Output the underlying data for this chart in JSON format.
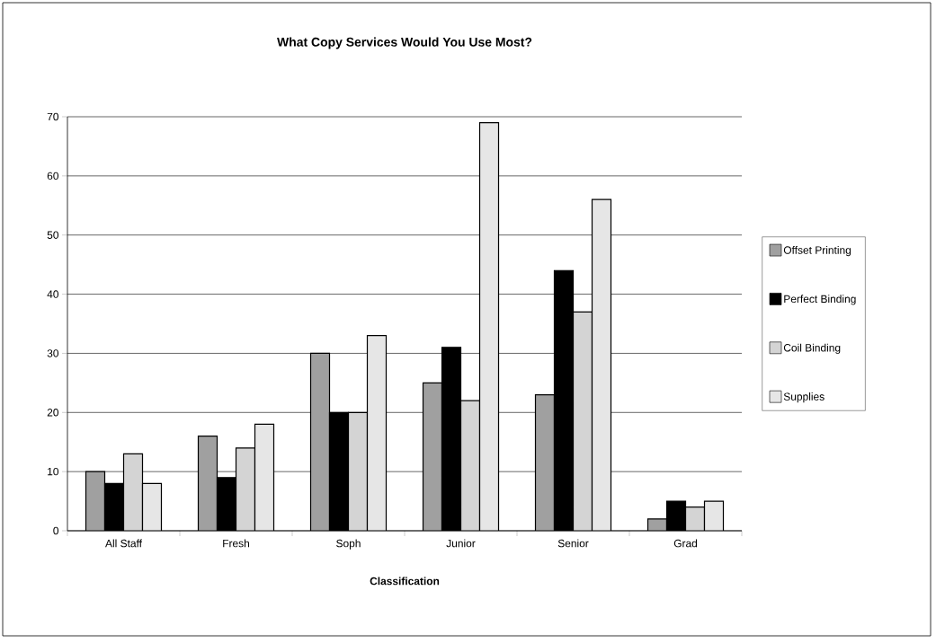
{
  "chart_data": {
    "type": "bar",
    "title": "What Copy Services Would You Use Most?",
    "xlabel": "Classification",
    "categories": [
      "All Staff",
      "Fresh",
      "Soph",
      "Junior",
      "Senior",
      "Grad"
    ],
    "series": [
      {
        "name": "Offset Printing",
        "color": "#a0a0a0",
        "values": [
          10,
          16,
          30,
          25,
          23,
          2
        ]
      },
      {
        "name": "Perfect Binding",
        "color": "#000000",
        "values": [
          8,
          9,
          20,
          31,
          44,
          5
        ]
      },
      {
        "name": "Coil Binding",
        "color": "#d4d4d4",
        "values": [
          13,
          14,
          20,
          22,
          37,
          4
        ]
      },
      {
        "name": "Supplies",
        "color": "#e6e6e6",
        "values": [
          8,
          18,
          33,
          69,
          56,
          5
        ]
      }
    ],
    "ylim": [
      0,
      70
    ],
    "yticks": [
      0,
      10,
      20,
      30,
      40,
      50,
      60,
      70
    ],
    "grid": "y",
    "legend": "right"
  }
}
